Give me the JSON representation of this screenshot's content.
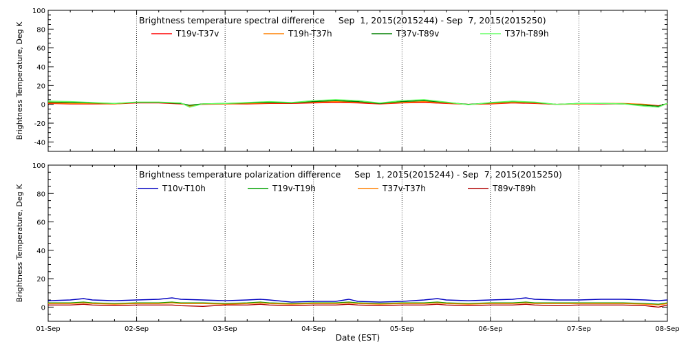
{
  "x_label": "Date (EST)",
  "x_ticks": [
    "01-Sep",
    "02-Sep",
    "03-Sep",
    "04-Sep",
    "05-Sep",
    "06-Sep",
    "07-Sep",
    "08-Sep"
  ],
  "chart_data": [
    {
      "type": "line",
      "title": "Brightness temperature spectral difference     Sep  1, 2015(2015244) - Sep  7, 2015(2015250)",
      "ylabel": "Brightness Temperature, Deg K",
      "xlim": [
        0,
        7
      ],
      "ylim": [
        -50,
        100
      ],
      "y_ticks": [
        -40,
        -20,
        0,
        20,
        40,
        60,
        80,
        100
      ],
      "grid": "vertical dotted lines at each day",
      "legend": "top, one row",
      "x": [
        0,
        0.25,
        0.5,
        0.75,
        1,
        1.25,
        1.5,
        1.6,
        1.75,
        2,
        2.25,
        2.5,
        2.75,
        3,
        3.25,
        3.5,
        3.75,
        4,
        4.25,
        4.5,
        4.75,
        5,
        5.25,
        5.5,
        5.75,
        6,
        6.25,
        6.5,
        6.75,
        6.9,
        7
      ],
      "series": [
        {
          "name": "T19v-T37v",
          "color": "#ff0000",
          "values": [
            1,
            0.5,
            0.5,
            0.5,
            1.5,
            1.5,
            0.5,
            -1.5,
            0,
            0.5,
            0.5,
            1,
            1,
            1.5,
            2,
            1.5,
            0.5,
            1.5,
            2,
            1,
            0,
            0.5,
            1.5,
            1,
            0,
            0.5,
            0.5,
            0.5,
            0,
            -1.5,
            0.5
          ]
        },
        {
          "name": "T19h-T37h",
          "color": "#ff8000",
          "values": [
            1.5,
            1,
            1,
            0.5,
            2,
            2,
            1,
            -2,
            0.5,
            0.5,
            1,
            1.5,
            1.5,
            2.5,
            3,
            2.5,
            1,
            2,
            3,
            1.5,
            0,
            1,
            2,
            1.5,
            0,
            0.5,
            1,
            1,
            0,
            -2,
            0.5
          ]
        },
        {
          "name": "T37v-T89v",
          "color": "#008000",
          "values": [
            2.5,
            2,
            1.5,
            1,
            2,
            2,
            1,
            -1,
            0.5,
            1,
            1.5,
            2,
            1.5,
            3,
            4,
            3,
            1,
            3,
            4,
            2,
            0,
            1.5,
            3,
            2,
            0,
            1,
            1,
            0.5,
            -1,
            -2,
            1
          ]
        },
        {
          "name": "T37h-T89h",
          "color": "#66ff66",
          "values": [
            3.5,
            3,
            2,
            1,
            2.5,
            2.5,
            1.5,
            -3,
            0.5,
            1,
            2,
            3,
            2,
            4,
            5,
            4,
            1.5,
            4,
            5,
            2.5,
            -0.5,
            2,
            3.5,
            2.5,
            0,
            1,
            1,
            0.5,
            -2,
            -3,
            1
          ]
        }
      ]
    },
    {
      "type": "line",
      "title": "Brightness temperature polarization difference     Sep  1, 2015(2015244) - Sep  7, 2015(2015250)",
      "ylabel": "Brightness Temperature, Deg K",
      "xlim": [
        0,
        7
      ],
      "ylim": [
        -10,
        100
      ],
      "y_ticks": [
        0,
        20,
        40,
        60,
        80,
        100
      ],
      "grid": "vertical dotted lines at each day",
      "legend": "top, one row",
      "x": [
        0,
        0.25,
        0.4,
        0.5,
        0.75,
        1,
        1.25,
        1.4,
        1.5,
        1.75,
        2,
        2.25,
        2.4,
        2.5,
        2.75,
        3,
        3.25,
        3.4,
        3.5,
        3.75,
        4,
        4.25,
        4.4,
        4.5,
        4.75,
        5,
        5.25,
        5.4,
        5.5,
        5.75,
        6,
        6.25,
        6.5,
        6.75,
        6.9,
        7
      ],
      "series": [
        {
          "name": "T10v-T10h",
          "color": "#0000c0",
          "values": [
            4.5,
            5,
            6,
            5,
            4.5,
            5,
            5.5,
            6.5,
            5.5,
            5,
            4.5,
            5,
            5.5,
            5,
            3.5,
            4,
            4,
            5.5,
            4,
            3.5,
            4,
            5,
            6,
            5,
            4.5,
            5,
            5.5,
            6.5,
            5.5,
            5,
            5,
            5.5,
            5.5,
            5,
            4.5,
            5
          ]
        },
        {
          "name": "T19v-T19h",
          "color": "#00a000",
          "values": [
            3,
            3,
            3.5,
            3,
            2.5,
            3,
            3,
            3.5,
            3,
            3,
            2.5,
            3,
            3.5,
            3,
            2.5,
            3,
            3,
            3.5,
            3,
            2.5,
            3,
            3,
            3.5,
            3,
            2.5,
            3,
            3,
            3.5,
            3,
            3,
            3,
            3,
            3,
            2.5,
            2,
            3
          ]
        },
        {
          "name": "T37v-T37h",
          "color": "#ff8000",
          "values": [
            2.5,
            2.5,
            3,
            2.5,
            2,
            2.5,
            2.5,
            3,
            2.5,
            2.5,
            2,
            2.5,
            3,
            2.5,
            2,
            2.5,
            2.5,
            3,
            2.5,
            2,
            2.5,
            2.5,
            3,
            2.5,
            2,
            2.5,
            2.5,
            3,
            2.5,
            2.5,
            2.5,
            2.5,
            2.5,
            2,
            1.5,
            2.5
          ]
        },
        {
          "name": "T89v-T89h",
          "color": "#b00000",
          "values": [
            1.5,
            1.5,
            2,
            1.5,
            1,
            1.5,
            1.5,
            1.5,
            1,
            0.5,
            1.5,
            1.5,
            2,
            1.5,
            1,
            1.5,
            1.5,
            2,
            1.5,
            1,
            1.5,
            1.5,
            2,
            1.5,
            1,
            1.5,
            1.5,
            2,
            1.5,
            1,
            1.5,
            1.5,
            1.5,
            1,
            0,
            1.5
          ]
        }
      ]
    }
  ]
}
